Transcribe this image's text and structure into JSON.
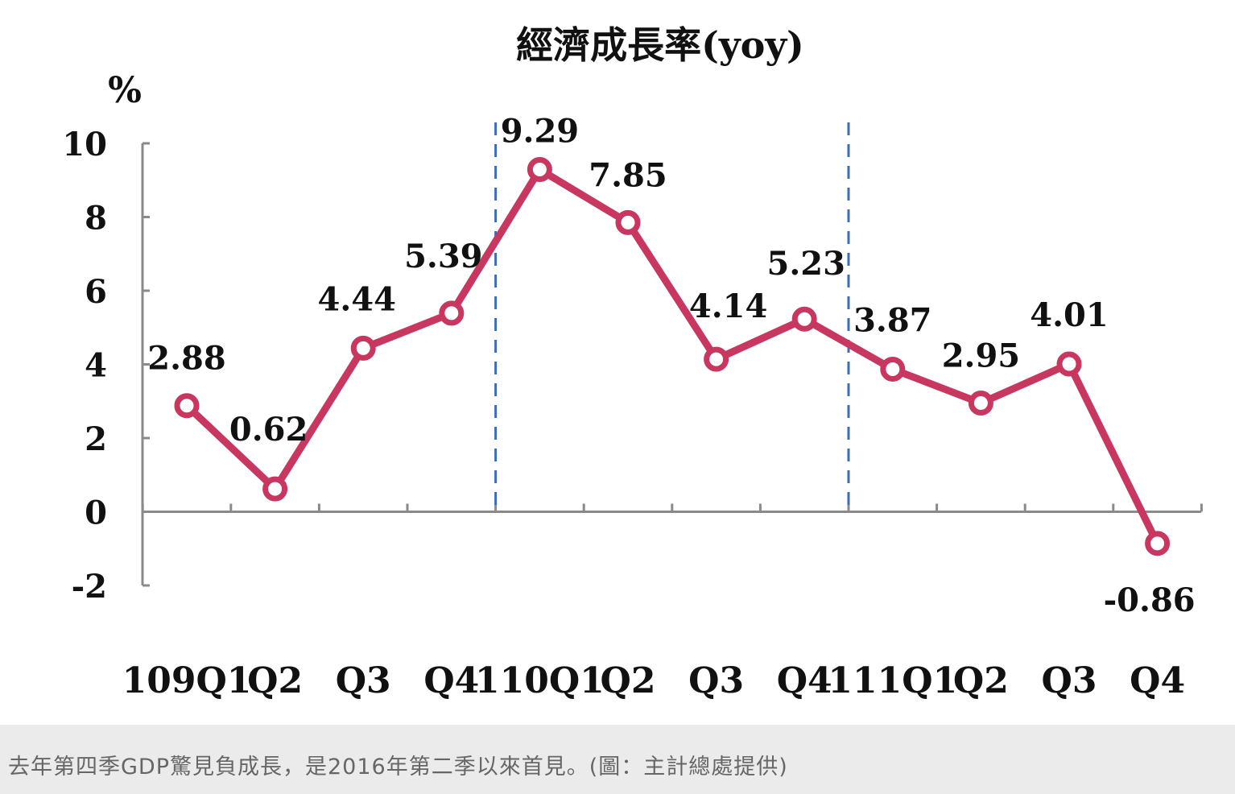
{
  "chart_data": {
    "type": "line",
    "title": "經濟成長率(yoy)",
    "ylabel": "%",
    "xlabel": "",
    "ylim": [
      -2,
      10
    ],
    "yticks": [
      "10",
      "8",
      "6",
      "4",
      "2",
      "0",
      "-2"
    ],
    "categories": [
      "109Q1",
      "Q2",
      "Q3",
      "Q4",
      "110Q1",
      "Q2",
      "Q3",
      "Q4",
      "111Q1",
      "Q2",
      "Q3",
      "Q4"
    ],
    "series": [
      {
        "values": [
          2.88,
          0.62,
          4.44,
          5.39,
          9.29,
          7.85,
          4.14,
          5.23,
          3.87,
          2.95,
          4.01,
          -0.86
        ]
      }
    ],
    "data_labels": [
      "2.88",
      "0.62",
      "4.44",
      "5.39",
      "9.29",
      "7.85",
      "4.14",
      "5.23",
      "3.87",
      "2.95",
      "4.01",
      "-0.86"
    ],
    "year_dividers_after": [
      "Q4",
      "Q4"
    ],
    "line_color": "#c8375f",
    "divider_color": "#3d6fb0",
    "grid": false,
    "legend": "none"
  },
  "caption": "去年第四季GDP驚見負成長，是2016年第二季以來首見。(圖：主計總處提供)"
}
